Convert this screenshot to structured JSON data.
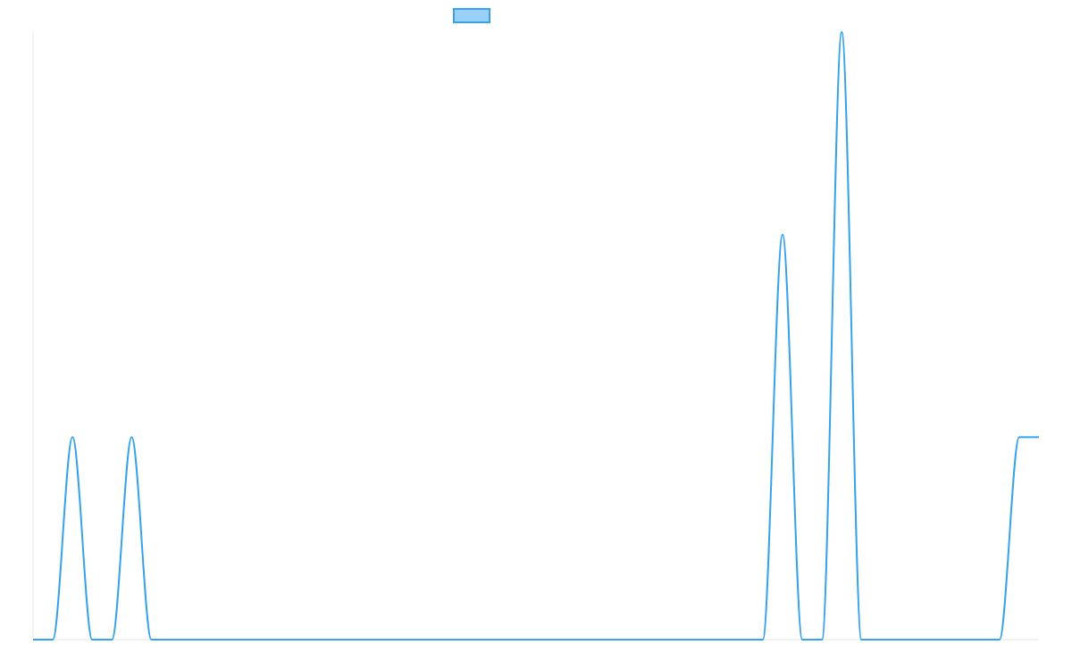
{
  "chart_data": {
    "type": "line",
    "title": "",
    "xlabel": "",
    "ylabel": "",
    "legend": {
      "placement": "top-center",
      "swatch_fill": "#9ad0f5",
      "swatch_stroke": "#36a2eb"
    },
    "grid": false,
    "axes_visible": false,
    "xlim": [
      0,
      51
    ],
    "ylim": [
      0,
      3
    ],
    "series": [
      {
        "color": "#36a2eb",
        "x": [
          0,
          1,
          2,
          3,
          4,
          5,
          6,
          7,
          8,
          9,
          10,
          11,
          12,
          13,
          14,
          15,
          16,
          17,
          18,
          19,
          20,
          21,
          22,
          23,
          24,
          25,
          26,
          27,
          28,
          29,
          30,
          31,
          32,
          33,
          34,
          35,
          36,
          37,
          38,
          39,
          40,
          41,
          42,
          43,
          44,
          45,
          46,
          47,
          48,
          49,
          50,
          51
        ],
        "values": [
          0,
          0,
          1,
          0,
          0,
          1,
          0,
          0,
          0,
          0,
          0,
          0,
          0,
          0,
          0,
          0,
          0,
          0,
          0,
          0,
          0,
          0,
          0,
          0,
          0,
          0,
          0,
          0,
          0,
          0,
          0,
          0,
          0,
          0,
          0,
          0,
          0,
          0,
          2,
          0,
          0,
          3,
          0,
          0,
          0,
          0,
          0,
          0,
          0,
          0,
          1,
          1
        ]
      }
    ]
  }
}
